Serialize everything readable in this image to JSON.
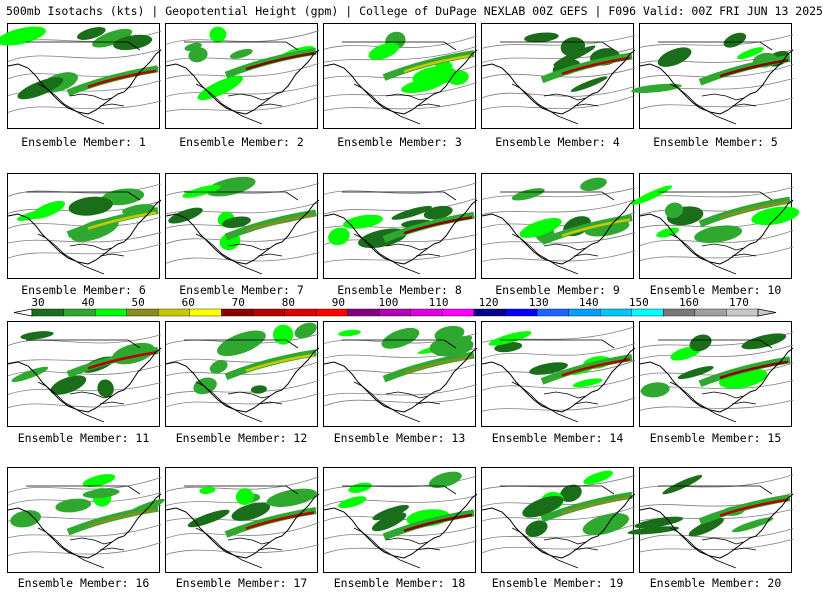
{
  "header": {
    "text": "500mb Isotachs (kts) | Geopotential Height (gpm) | College of DuPage NEXLAB   00Z GEFS | F096 Valid: 00Z FRI JUN 13 2025"
  },
  "colorbar": {
    "levels": [
      "30",
      "40",
      "50",
      "60",
      "70",
      "80",
      "90",
      "100",
      "110",
      "120",
      "130",
      "140",
      "150",
      "160",
      "170"
    ],
    "colors": [
      "#1a6e1a",
      "#2fa82f",
      "#00ff00",
      "#8c8c1e",
      "#c8c800",
      "#ffff00",
      "#8b0000",
      "#b40000",
      "#dc0000",
      "#ff0000",
      "#800080",
      "#b400b4",
      "#dc00dc",
      "#ff00ff",
      "#00008b",
      "#0000ff",
      "#1e64ff",
      "#00a0ff",
      "#00c8ff",
      "#00ffff",
      "#7a7a7a",
      "#a0a0a0",
      "#c8c8c8"
    ]
  },
  "members": [
    {
      "caption": "Ensemble Member: 1"
    },
    {
      "caption": "Ensemble Member: 2"
    },
    {
      "caption": "Ensemble Member: 3"
    },
    {
      "caption": "Ensemble Member: 4"
    },
    {
      "caption": "Ensemble Member: 5"
    },
    {
      "caption": "Ensemble Member: 6"
    },
    {
      "caption": "Ensemble Member: 7"
    },
    {
      "caption": "Ensemble Member: 8"
    },
    {
      "caption": "Ensemble Member: 9"
    },
    {
      "caption": "Ensemble Member: 10"
    },
    {
      "caption": "Ensemble Member: 11"
    },
    {
      "caption": "Ensemble Member: 12"
    },
    {
      "caption": "Ensemble Member: 13"
    },
    {
      "caption": "Ensemble Member: 14"
    },
    {
      "caption": "Ensemble Member: 15"
    },
    {
      "caption": "Ensemble Member: 16"
    },
    {
      "caption": "Ensemble Member: 17"
    },
    {
      "caption": "Ensemble Member: 18"
    },
    {
      "caption": "Ensemble Member: 19"
    },
    {
      "caption": "Ensemble Member: 20"
    }
  ]
}
